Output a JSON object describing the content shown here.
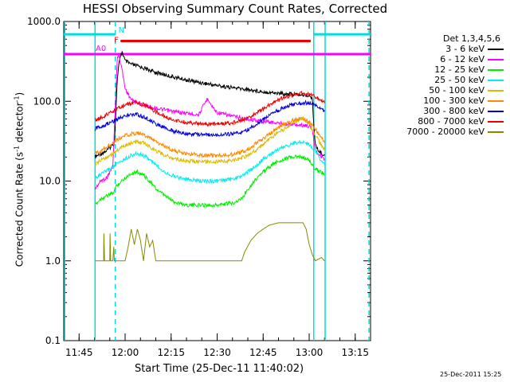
{
  "chart_data": {
    "type": "line",
    "title": "HESSI Observing Summary Count Rates, Corrected",
    "xlabel": "Start Time (25-Dec-11 11:40:02)",
    "ylabel": "Corrected Count Rate (s-1 detector-1)",
    "ylabel_parts": [
      "Corrected Count Rate (s",
      "-1",
      " detector",
      "-1",
      ")"
    ],
    "yscale": "log",
    "ylim": [
      0.1,
      1000
    ],
    "xlim_min": [
      700,
      800
    ],
    "x_ticks": [
      {
        "min": 705,
        "label": "11:45"
      },
      {
        "min": 720,
        "label": "12:00"
      },
      {
        "min": 735,
        "label": "12:15"
      },
      {
        "min": 750,
        "label": "12:30"
      },
      {
        "min": 765,
        "label": "12:45"
      },
      {
        "min": 780,
        "label": "13:00"
      },
      {
        "min": 795,
        "label": "13:15"
      }
    ],
    "y_ticks": [
      {
        "v": 0.1,
        "label": "0.1"
      },
      {
        "v": 1,
        "label": "1.0"
      },
      {
        "v": 10,
        "label": "10.0"
      },
      {
        "v": 100,
        "label": "100.0"
      },
      {
        "v": 1000,
        "label": "1000.0"
      }
    ],
    "legend_title": "Det 1,3,4,5,6",
    "legend_position": "right",
    "series": [
      {
        "name": "3 - 6 keV",
        "color": "#000000",
        "points": [
          [
            710.2,
            20
          ],
          [
            712,
            22
          ],
          [
            714,
            24
          ],
          [
            716.5,
            30
          ],
          [
            717.5,
            200
          ],
          [
            718,
            300
          ],
          [
            719,
            420
          ],
          [
            720,
            320
          ],
          [
            722,
            290
          ],
          [
            725,
            270
          ],
          [
            730,
            230
          ],
          [
            735,
            205
          ],
          [
            740,
            185
          ],
          [
            745,
            170
          ],
          [
            750,
            158
          ],
          [
            755,
            148
          ],
          [
            760,
            140
          ],
          [
            765,
            132
          ],
          [
            770,
            126
          ],
          [
            775,
            122
          ],
          [
            778,
            120
          ],
          [
            780,
            118
          ],
          [
            781,
            105
          ],
          [
            782,
            28
          ],
          [
            783,
            24
          ],
          [
            785,
            21
          ]
        ]
      },
      {
        "name": "6 - 12 keV",
        "color": "#ff00ff",
        "points": [
          [
            710.2,
            8
          ],
          [
            712,
            10
          ],
          [
            714,
            11
          ],
          [
            716,
            15
          ],
          [
            717,
            130
          ],
          [
            717.5,
            360
          ],
          [
            718,
            380
          ],
          [
            719,
            250
          ],
          [
            720,
            145
          ],
          [
            722,
            105
          ],
          [
            725,
            92
          ],
          [
            730,
            82
          ],
          [
            735,
            75
          ],
          [
            740,
            71
          ],
          [
            744,
            68
          ],
          [
            746,
            95
          ],
          [
            747,
            110
          ],
          [
            748,
            90
          ],
          [
            750,
            72
          ],
          [
            755,
            65
          ],
          [
            760,
            60
          ],
          [
            765,
            56
          ],
          [
            770,
            53
          ],
          [
            775,
            51
          ],
          [
            778,
            50
          ],
          [
            780,
            49
          ],
          [
            781,
            45
          ],
          [
            782,
            25
          ],
          [
            783,
            22
          ],
          [
            785,
            19
          ]
        ]
      },
      {
        "name": "12 - 25 keV",
        "color": "#00ee00",
        "points": [
          [
            710.2,
            5
          ],
          [
            712,
            6
          ],
          [
            714,
            6.5
          ],
          [
            716,
            7
          ],
          [
            717,
            8.5
          ],
          [
            720,
            11
          ],
          [
            722,
            12.5
          ],
          [
            724,
            13
          ],
          [
            726,
            12
          ],
          [
            728,
            10
          ],
          [
            730,
            8
          ],
          [
            733,
            6.5
          ],
          [
            736,
            5.5
          ],
          [
            740,
            5
          ],
          [
            745,
            5
          ],
          [
            750,
            5
          ],
          [
            755,
            5.3
          ],
          [
            758,
            6
          ],
          [
            760,
            8
          ],
          [
            763,
            11
          ],
          [
            766,
            14
          ],
          [
            769,
            17
          ],
          [
            772,
            19
          ],
          [
            775,
            20
          ],
          [
            778,
            20
          ],
          [
            780,
            18
          ],
          [
            782,
            14
          ],
          [
            784,
            13
          ],
          [
            785,
            12
          ]
        ]
      },
      {
        "name": "25 - 50 keV",
        "color": "#00eeee",
        "points": [
          [
            710.2,
            11
          ],
          [
            712,
            12
          ],
          [
            714,
            13.5
          ],
          [
            716,
            15
          ],
          [
            718,
            17
          ],
          [
            720,
            19
          ],
          [
            722,
            21
          ],
          [
            724,
            22
          ],
          [
            726,
            21
          ],
          [
            728,
            18.5
          ],
          [
            730,
            16
          ],
          [
            733,
            13
          ],
          [
            736,
            11.5
          ],
          [
            740,
            10.5
          ],
          [
            745,
            10
          ],
          [
            750,
            10
          ],
          [
            755,
            10.5
          ],
          [
            758,
            11.5
          ],
          [
            760,
            13
          ],
          [
            763,
            16
          ],
          [
            766,
            20
          ],
          [
            769,
            24
          ],
          [
            772,
            27
          ],
          [
            775,
            30
          ],
          [
            778,
            31
          ],
          [
            780,
            29
          ],
          [
            782,
            24
          ],
          [
            784,
            18
          ],
          [
            785,
            16
          ]
        ]
      },
      {
        "name": "50 - 100 keV",
        "color": "#ddbb00",
        "points": [
          [
            710.2,
            16
          ],
          [
            712,
            18
          ],
          [
            714,
            20
          ],
          [
            716,
            22
          ],
          [
            718,
            25
          ],
          [
            720,
            28
          ],
          [
            722,
            30
          ],
          [
            724,
            31
          ],
          [
            726,
            30
          ],
          [
            728,
            27
          ],
          [
            730,
            24
          ],
          [
            733,
            21
          ],
          [
            736,
            19
          ],
          [
            740,
            18
          ],
          [
            745,
            17.5
          ],
          [
            750,
            17.5
          ],
          [
            755,
            18
          ],
          [
            758,
            19.5
          ],
          [
            760,
            21
          ],
          [
            763,
            25
          ],
          [
            766,
            31
          ],
          [
            769,
            38
          ],
          [
            772,
            45
          ],
          [
            775,
            55
          ],
          [
            777,
            60
          ],
          [
            778,
            62
          ],
          [
            780,
            52
          ],
          [
            782,
            38
          ],
          [
            784,
            28
          ],
          [
            785,
            25
          ]
        ]
      },
      {
        "name": "100 - 300 keV",
        "color": "#ff8800",
        "points": [
          [
            710.2,
            22
          ],
          [
            712,
            24
          ],
          [
            714,
            27
          ],
          [
            716,
            30
          ],
          [
            718,
            34
          ],
          [
            720,
            37
          ],
          [
            722,
            39
          ],
          [
            724,
            40
          ],
          [
            726,
            38
          ],
          [
            728,
            35
          ],
          [
            730,
            31
          ],
          [
            733,
            27
          ],
          [
            736,
            24
          ],
          [
            740,
            22
          ],
          [
            745,
            21
          ],
          [
            750,
            21
          ],
          [
            755,
            21.5
          ],
          [
            758,
            23
          ],
          [
            760,
            25
          ],
          [
            763,
            30
          ],
          [
            766,
            36
          ],
          [
            769,
            44
          ],
          [
            772,
            52
          ],
          [
            775,
            58
          ],
          [
            778,
            62
          ],
          [
            780,
            55
          ],
          [
            782,
            45
          ],
          [
            784,
            35
          ],
          [
            785,
            30
          ]
        ]
      },
      {
        "name": "300 - 800 keV",
        "color": "#0000dd",
        "points": [
          [
            710.2,
            45
          ],
          [
            712,
            48
          ],
          [
            714,
            52
          ],
          [
            716,
            56
          ],
          [
            718,
            62
          ],
          [
            720,
            66
          ],
          [
            722,
            68
          ],
          [
            724,
            68
          ],
          [
            726,
            64
          ],
          [
            728,
            58
          ],
          [
            730,
            52
          ],
          [
            733,
            46
          ],
          [
            736,
            42
          ],
          [
            740,
            39
          ],
          [
            745,
            38
          ],
          [
            750,
            38
          ],
          [
            755,
            39
          ],
          [
            758,
            41
          ],
          [
            760,
            44
          ],
          [
            763,
            52
          ],
          [
            766,
            62
          ],
          [
            769,
            74
          ],
          [
            772,
            84
          ],
          [
            775,
            92
          ],
          [
            778,
            96
          ],
          [
            780,
            95
          ],
          [
            782,
            90
          ],
          [
            784,
            80
          ],
          [
            785,
            75
          ]
        ]
      },
      {
        "name": "800 - 7000 keV",
        "color": "#ee0000",
        "points": [
          [
            710.2,
            58
          ],
          [
            712,
            62
          ],
          [
            714,
            68
          ],
          [
            716,
            74
          ],
          [
            718,
            82
          ],
          [
            720,
            90
          ],
          [
            722,
            95
          ],
          [
            724,
            96
          ],
          [
            726,
            91
          ],
          [
            728,
            83
          ],
          [
            730,
            74
          ],
          [
            733,
            64
          ],
          [
            736,
            58
          ],
          [
            740,
            54
          ],
          [
            745,
            52
          ],
          [
            750,
            52
          ],
          [
            755,
            54
          ],
          [
            758,
            57
          ],
          [
            760,
            62
          ],
          [
            763,
            72
          ],
          [
            766,
            86
          ],
          [
            769,
            100
          ],
          [
            772,
            112
          ],
          [
            775,
            122
          ],
          [
            778,
            126
          ],
          [
            780,
            122
          ],
          [
            782,
            115
          ],
          [
            784,
            100
          ],
          [
            785,
            95
          ]
        ]
      },
      {
        "name": "7000 - 20000 keV",
        "color": "#888800",
        "points": [
          [
            710.2,
            1
          ],
          [
            712,
            1
          ],
          [
            713,
            1
          ],
          [
            713.1,
            2.2
          ],
          [
            713.3,
            1
          ],
          [
            715,
            1
          ],
          [
            715.1,
            2.2
          ],
          [
            715.3,
            1
          ],
          [
            716,
            1
          ],
          [
            716.3,
            1.5
          ],
          [
            716.5,
            1
          ],
          [
            719,
            1
          ],
          [
            720,
            1
          ],
          [
            721,
            1.5
          ],
          [
            722,
            2.5
          ],
          [
            723,
            1.6
          ],
          [
            724,
            2.5
          ],
          [
            725,
            1.8
          ],
          [
            726,
            1
          ],
          [
            727,
            2.2
          ],
          [
            728,
            1.5
          ],
          [
            729,
            1.8
          ],
          [
            730,
            1
          ],
          [
            731,
            1
          ],
          [
            745,
            1
          ],
          [
            755,
            1
          ],
          [
            758,
            1
          ],
          [
            759,
            1.3
          ],
          [
            761,
            1.8
          ],
          [
            763,
            2.2
          ],
          [
            765,
            2.5
          ],
          [
            767,
            2.8
          ],
          [
            770,
            3
          ],
          [
            773,
            3
          ],
          [
            776,
            3
          ],
          [
            778,
            3
          ],
          [
            779,
            2.5
          ],
          [
            780,
            1.6
          ],
          [
            781,
            1.2
          ],
          [
            782,
            1
          ],
          [
            784,
            1.1
          ],
          [
            785,
            1
          ]
        ]
      }
    ],
    "annotations": {
      "attenuator_label": "A0",
      "flare_label": "F",
      "night_label": "N",
      "night_segments": [
        [
          700,
          716.8
        ],
        [
          781.5,
          800
        ]
      ],
      "flare_segment": [
        718.5,
        780.5
      ],
      "attenuator_segment": [
        700,
        800
      ]
    },
    "vertical_lines": [
      {
        "min": 700.3,
        "color": "#00dddd",
        "style": "solid"
      },
      {
        "min": 710.2,
        "color": "#00dddd",
        "style": "solid"
      },
      {
        "min": 716.8,
        "color": "#00dddd",
        "style": "dashed"
      },
      {
        "min": 781.5,
        "color": "#00dddd",
        "style": "solid"
      },
      {
        "min": 785.2,
        "color": "#00dddd",
        "style": "solid"
      },
      {
        "min": 799.5,
        "color": "#00dddd",
        "style": "dashed"
      }
    ]
  },
  "stamp": "25-Dec-2011 15:25"
}
